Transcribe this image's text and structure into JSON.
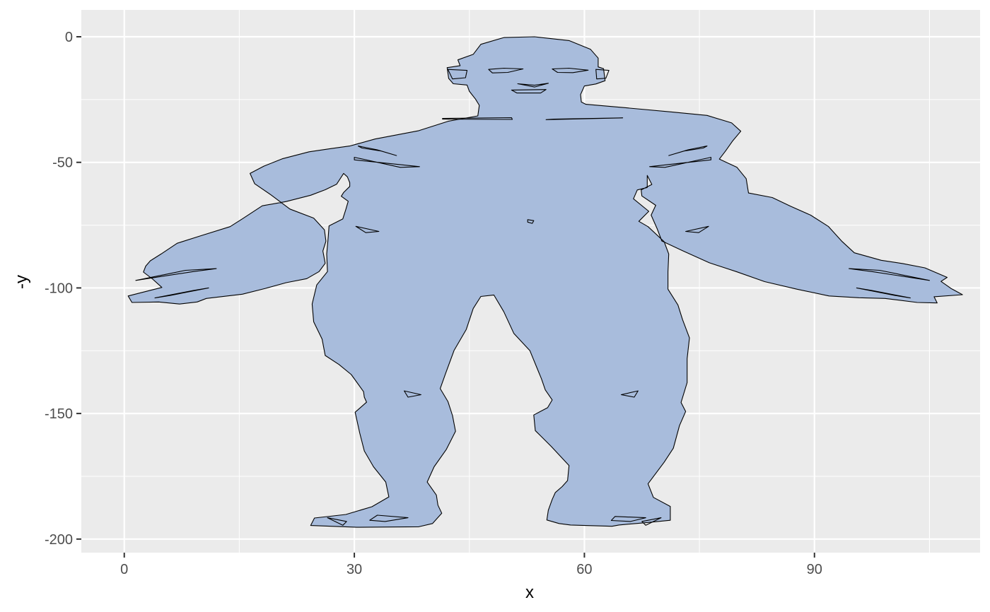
{
  "chart_data": {
    "type": "polygon",
    "xlabel": "x",
    "ylabel": "-y",
    "xlim": [
      -5.6,
      111.6
    ],
    "ylim": [
      -205.4,
      10.7
    ],
    "x_ticks": [
      0,
      30,
      60,
      90
    ],
    "y_ticks": [
      0,
      -50,
      -100,
      -150,
      -200
    ],
    "x_tick_labels": [
      "0",
      "30",
      "60",
      "90"
    ],
    "y_tick_labels": [
      "0",
      "-50",
      "-100",
      "-150",
      "-200"
    ],
    "grid": true,
    "colors": {
      "fill": "#a8bcdc",
      "stroke": "#000000",
      "panel": "#ebebeb",
      "grid": "#ffffff"
    },
    "outline": [
      [
        45.5,
        -7
      ],
      [
        46.5,
        -3
      ],
      [
        49.5,
        -0.3
      ],
      [
        53.5,
        0
      ],
      [
        58,
        -1.5
      ],
      [
        60.8,
        -5
      ],
      [
        61.8,
        -8.5
      ],
      [
        61.8,
        -12
      ],
      [
        62.5,
        -12.7
      ],
      [
        62.7,
        -17.5
      ],
      [
        61.5,
        -18.8
      ],
      [
        60,
        -19.6
      ],
      [
        59.5,
        -23
      ],
      [
        59.6,
        -26
      ],
      [
        60.2,
        -26.9
      ],
      [
        65.5,
        -28.3
      ],
      [
        71.5,
        -30
      ],
      [
        76,
        -31.3
      ],
      [
        79.2,
        -34.3
      ],
      [
        80.4,
        -37.6
      ],
      [
        79.3,
        -41.6
      ],
      [
        78.4,
        -45.5
      ],
      [
        77.6,
        -48.7
      ],
      [
        79.9,
        -52
      ],
      [
        81.1,
        -56.5
      ],
      [
        81.4,
        -62.2
      ],
      [
        84.5,
        -64
      ],
      [
        86.9,
        -67.5
      ],
      [
        89.5,
        -71
      ],
      [
        91.8,
        -75.5
      ],
      [
        93.6,
        -81.5
      ],
      [
        95.2,
        -86
      ],
      [
        98.7,
        -89
      ],
      [
        101.5,
        -90.3
      ],
      [
        104.4,
        -92
      ],
      [
        107.3,
        -95.8
      ],
      [
        106.5,
        -97.4
      ],
      [
        107.8,
        -100.2
      ],
      [
        109.3,
        -102.7
      ],
      [
        105.6,
        -103.5
      ],
      [
        106,
        -106
      ],
      [
        103.4,
        -105.8
      ],
      [
        99.2,
        -104.2
      ],
      [
        95.8,
        -103.9
      ],
      [
        91.9,
        -103.2
      ],
      [
        87.7,
        -100.5
      ],
      [
        83.5,
        -97.5
      ],
      [
        79.8,
        -93.5
      ],
      [
        76.3,
        -90
      ],
      [
        72.9,
        -85.3
      ],
      [
        70.1,
        -81.3
      ],
      [
        69.5,
        -76.5
      ],
      [
        68.7,
        -71
      ],
      [
        69.3,
        -67.1
      ],
      [
        67.5,
        -63.4
      ],
      [
        67.4,
        -61
      ],
      [
        68.8,
        -58.8
      ],
      [
        68.2,
        -55.2
      ],
      [
        68.2,
        -60
      ],
      [
        66.9,
        -61
      ],
      [
        66.4,
        -64.5
      ],
      [
        68.4,
        -69.5
      ],
      [
        67.1,
        -73.5
      ],
      [
        68.3,
        -75.6
      ],
      [
        70.4,
        -81.6
      ],
      [
        71,
        -86.5
      ],
      [
        70.9,
        -93.6
      ],
      [
        70.9,
        -100.5
      ],
      [
        72.2,
        -106.8
      ],
      [
        72.8,
        -112.6
      ],
      [
        73.7,
        -119.9
      ],
      [
        73.4,
        -128.2
      ],
      [
        73.4,
        -137.7
      ],
      [
        72.6,
        -145.6
      ],
      [
        73.2,
        -149.2
      ],
      [
        72.4,
        -154.8
      ],
      [
        71.6,
        -163.8
      ],
      [
        70.4,
        -169.4
      ],
      [
        68.3,
        -178
      ],
      [
        69,
        -183.4
      ],
      [
        71.2,
        -187
      ],
      [
        71.2,
        -192.5
      ],
      [
        68.2,
        -193.4
      ],
      [
        64.5,
        -194.4
      ],
      [
        63.6,
        -194.9
      ],
      [
        58.2,
        -194.4
      ],
      [
        56.7,
        -193.8
      ],
      [
        55.1,
        -192.4
      ],
      [
        55.3,
        -188.5
      ],
      [
        55.8,
        -184.2
      ],
      [
        56.2,
        -181.5
      ],
      [
        57.1,
        -179.1
      ],
      [
        57.8,
        -176.7
      ],
      [
        58,
        -170.7
      ],
      [
        55.7,
        -163.2
      ],
      [
        53.6,
        -156.8
      ],
      [
        53.4,
        -150.6
      ],
      [
        55.2,
        -147.7
      ],
      [
        55.8,
        -144.6
      ],
      [
        54.9,
        -140.6
      ],
      [
        54.4,
        -136.2
      ],
      [
        52.9,
        -125
      ],
      [
        50.8,
        -118.1
      ],
      [
        49.5,
        -109.5
      ],
      [
        48.2,
        -102.8
      ],
      [
        46.5,
        -103.4
      ],
      [
        45.5,
        -108.2
      ],
      [
        44.6,
        -116.5
      ],
      [
        43,
        -124.9
      ],
      [
        41.9,
        -134.1
      ],
      [
        41.2,
        -140.1
      ],
      [
        42.2,
        -145.2
      ],
      [
        42.8,
        -150.8
      ],
      [
        43.2,
        -157.1
      ],
      [
        42,
        -164.3
      ],
      [
        40.4,
        -171.2
      ],
      [
        39.5,
        -177.3
      ],
      [
        40.7,
        -182.5
      ],
      [
        40.9,
        -186.5
      ],
      [
        41.4,
        -189.7
      ],
      [
        40.2,
        -193.8
      ],
      [
        38.4,
        -195.1
      ],
      [
        30.3,
        -195.3
      ],
      [
        24.3,
        -194.6
      ],
      [
        24.8,
        -191.6
      ],
      [
        28.9,
        -190.2
      ],
      [
        32.3,
        -187.1
      ],
      [
        34.5,
        -183.2
      ],
      [
        34.1,
        -177.3
      ],
      [
        32.5,
        -171.2
      ],
      [
        31.3,
        -164.9
      ],
      [
        30.7,
        -157.8
      ],
      [
        30.1,
        -149.5
      ],
      [
        31.6,
        -145.5
      ],
      [
        31.3,
        -143.5
      ],
      [
        31.2,
        -141.3
      ],
      [
        29.6,
        -134.5
      ],
      [
        28,
        -130.5
      ],
      [
        26.2,
        -126.9
      ],
      [
        25.8,
        -120.4
      ],
      [
        24.7,
        -113.5
      ],
      [
        24.5,
        -106.4
      ],
      [
        25.1,
        -98.8
      ],
      [
        26.5,
        -93.5
      ],
      [
        26.4,
        -86.5
      ],
      [
        26.6,
        -79.6
      ],
      [
        26.7,
        -75.3
      ],
      [
        28.5,
        -72.5
      ],
      [
        28.9,
        -68.7
      ],
      [
        29.2,
        -65.5
      ],
      [
        28.3,
        -63.5
      ],
      [
        28.6,
        -62
      ],
      [
        29.4,
        -59.6
      ],
      [
        29.4,
        -58.1
      ],
      [
        29.1,
        -55.8
      ],
      [
        28.6,
        -54.4
      ],
      [
        27.7,
        -58.7
      ],
      [
        26.2,
        -60.9
      ],
      [
        24.3,
        -63.1
      ],
      [
        21.1,
        -65.6
      ],
      [
        18,
        -67.3
      ],
      [
        15.4,
        -72.5
      ],
      [
        13.8,
        -75.6
      ],
      [
        9.9,
        -79.3
      ],
      [
        6.9,
        -82.2
      ],
      [
        4.8,
        -86.5
      ],
      [
        3.4,
        -89.2
      ],
      [
        2.8,
        -91.3
      ],
      [
        2.5,
        -93.7
      ],
      [
        3.7,
        -96.5
      ],
      [
        4.9,
        -99.8
      ],
      [
        0.5,
        -103.2
      ],
      [
        1,
        -105.8
      ],
      [
        4.5,
        -105.6
      ],
      [
        7.2,
        -106.4
      ],
      [
        9.5,
        -105.6
      ],
      [
        10.7,
        -104.2
      ],
      [
        15.4,
        -102.5
      ],
      [
        18.4,
        -100.2
      ],
      [
        21.1,
        -97.9
      ],
      [
        23.8,
        -96.3
      ],
      [
        25.4,
        -93.5
      ],
      [
        26.2,
        -90.2
      ],
      [
        25.9,
        -85.3
      ],
      [
        26.3,
        -81.4
      ],
      [
        26.1,
        -76.9
      ],
      [
        24.7,
        -72.2
      ],
      [
        21.6,
        -68.6
      ],
      [
        19.1,
        -62.9
      ],
      [
        17,
        -58.5
      ],
      [
        16.4,
        -54.4
      ],
      [
        18.2,
        -51.5
      ],
      [
        20.6,
        -48.6
      ],
      [
        24.1,
        -45.8
      ],
      [
        27,
        -44.5
      ],
      [
        29.4,
        -43.5
      ],
      [
        32.7,
        -40.7
      ],
      [
        38.4,
        -37.4
      ],
      [
        42.3,
        -33.6
      ],
      [
        46.1,
        -31.5
      ],
      [
        46.3,
        -27.3
      ],
      [
        45.8,
        -24.8
      ],
      [
        45,
        -21.7
      ],
      [
        44.7,
        -19.2
      ],
      [
        42.9,
        -18.7
      ],
      [
        42.3,
        -16.6
      ],
      [
        42.1,
        -12.3
      ],
      [
        43.8,
        -11.5
      ],
      [
        43.5,
        -9.2
      ],
      [
        45.5,
        -7
      ]
    ],
    "features": [
      [
        [
          47.5,
          -13
        ],
        [
          49.5,
          -12.5
        ],
        [
          52,
          -12.8
        ],
        [
          50,
          -14.2
        ],
        [
          48,
          -14.4
        ],
        [
          47.5,
          -13
        ]
      ],
      [
        [
          55.8,
          -12.8
        ],
        [
          58,
          -12.5
        ],
        [
          60.5,
          -13.3
        ],
        [
          58.5,
          -14.3
        ],
        [
          56.5,
          -14.2
        ],
        [
          55.8,
          -12.8
        ]
      ],
      [
        [
          51.3,
          -18.7
        ],
        [
          53.5,
          -19.3
        ],
        [
          55.3,
          -18.5
        ],
        [
          53.5,
          -20
        ],
        [
          51.3,
          -18.7
        ]
      ],
      [
        [
          50.5,
          -21.2
        ],
        [
          55,
          -21
        ],
        [
          54.3,
          -22.4
        ],
        [
          51.2,
          -22.4
        ],
        [
          50.5,
          -21.2
        ]
      ],
      [
        [
          42.2,
          -13
        ],
        [
          44.7,
          -13.4
        ],
        [
          44.5,
          -16.3
        ],
        [
          42.8,
          -16.8
        ],
        [
          42.2,
          -13
        ]
      ],
      [
        [
          61.5,
          -13
        ],
        [
          63.2,
          -13.4
        ],
        [
          62.8,
          -16.5
        ],
        [
          61.6,
          -16.8
        ],
        [
          61.5,
          -13
        ]
      ],
      [
        [
          41.5,
          -32.5
        ],
        [
          50.5,
          -32.2
        ],
        [
          50.6,
          -32.9
        ],
        [
          41.5,
          -32.8
        ],
        [
          41.5,
          -32.5
        ]
      ],
      [
        [
          55,
          -33
        ],
        [
          65,
          -32.3
        ],
        [
          56,
          -32.8
        ],
        [
          55,
          -33
        ]
      ],
      [
        [
          30,
          -48
        ],
        [
          36,
          -52
        ],
        [
          38.5,
          -51.7
        ],
        [
          30,
          -49
        ],
        [
          30,
          -48
        ]
      ],
      [
        [
          76.5,
          -48
        ],
        [
          70.5,
          -52
        ],
        [
          68.5,
          -51.7
        ],
        [
          76.5,
          -49
        ],
        [
          76.5,
          -48
        ]
      ],
      [
        [
          30.5,
          -43.5
        ],
        [
          33,
          -45
        ],
        [
          35.5,
          -47.3
        ],
        [
          33.5,
          -45.5
        ],
        [
          31,
          -44.3
        ],
        [
          30.5,
          -43.5
        ]
      ],
      [
        [
          76,
          -43.5
        ],
        [
          73.5,
          -45
        ],
        [
          71,
          -47.3
        ],
        [
          73,
          -45.5
        ],
        [
          75.5,
          -44.3
        ],
        [
          76,
          -43.5
        ]
      ],
      [
        [
          52.6,
          -72.8
        ],
        [
          53.4,
          -73.2
        ],
        [
          53.2,
          -74.3
        ],
        [
          52.6,
          -73.8
        ],
        [
          52.6,
          -72.8
        ]
      ],
      [
        [
          30.2,
          -75.5
        ],
        [
          33.2,
          -77.5
        ],
        [
          31.5,
          -78
        ],
        [
          30.2,
          -75.5
        ]
      ],
      [
        [
          76.2,
          -75.5
        ],
        [
          73.2,
          -77.5
        ],
        [
          74.9,
          -78
        ],
        [
          76.2,
          -75.5
        ]
      ],
      [
        [
          36.5,
          -141
        ],
        [
          38.7,
          -142.5
        ],
        [
          37,
          -143.5
        ],
        [
          36.5,
          -141
        ]
      ],
      [
        [
          67,
          -141
        ],
        [
          64.8,
          -142.5
        ],
        [
          66.5,
          -143.5
        ],
        [
          67,
          -141
        ]
      ],
      [
        [
          33,
          -190.5
        ],
        [
          37,
          -191.5
        ],
        [
          34,
          -193
        ],
        [
          32,
          -192.5
        ],
        [
          33,
          -190.5
        ]
      ],
      [
        [
          64,
          -191
        ],
        [
          68,
          -191.5
        ],
        [
          66,
          -193
        ],
        [
          63.5,
          -192.6
        ],
        [
          64,
          -191
        ]
      ],
      [
        [
          26.5,
          -191.5
        ],
        [
          29,
          -193
        ],
        [
          28.5,
          -194.5
        ],
        [
          26.5,
          -191.5
        ]
      ],
      [
        [
          70,
          -191.5
        ],
        [
          67.5,
          -193
        ],
        [
          68,
          -194.5
        ],
        [
          70,
          -191.5
        ]
      ],
      [
        [
          1.5,
          -97
        ],
        [
          8,
          -93
        ],
        [
          12,
          -92.3
        ],
        [
          9,
          -93.5
        ],
        [
          1.5,
          -97
        ]
      ],
      [
        [
          105,
          -97
        ],
        [
          98.5,
          -93
        ],
        [
          94.5,
          -92.3
        ],
        [
          97.5,
          -93.5
        ],
        [
          105,
          -97
        ]
      ],
      [
        [
          4,
          -104
        ],
        [
          9,
          -101
        ],
        [
          11,
          -100
        ],
        [
          6,
          -103
        ],
        [
          4,
          -104
        ]
      ],
      [
        [
          102.5,
          -104
        ],
        [
          97.5,
          -101
        ],
        [
          95.5,
          -100
        ],
        [
          100.5,
          -103
        ],
        [
          102.5,
          -104
        ]
      ]
    ]
  }
}
